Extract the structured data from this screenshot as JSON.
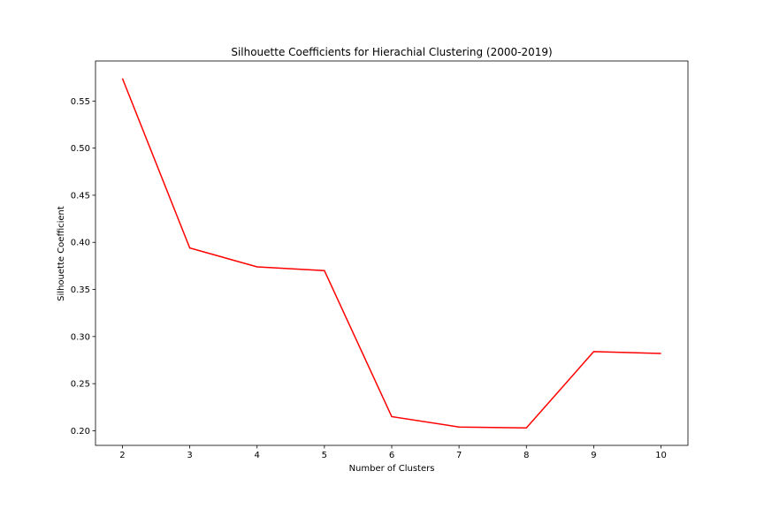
{
  "chart_data": {
    "type": "line",
    "title": "Silhouette Coefficients for Hierachial Clustering (2000-2019)",
    "xlabel": "Number of Clusters",
    "ylabel": "Silhouette Coefficient",
    "x": [
      2,
      3,
      4,
      5,
      6,
      7,
      8,
      9,
      10
    ],
    "series": [
      {
        "values": [
          0.574,
          0.394,
          0.374,
          0.37,
          0.215,
          0.204,
          0.203,
          0.284,
          0.282
        ],
        "color": "#ff0000"
      }
    ],
    "xticks": [
      2,
      3,
      4,
      5,
      6,
      7,
      8,
      9,
      10
    ],
    "xtick_labels": [
      "2",
      "3",
      "4",
      "5",
      "6",
      "7",
      "8",
      "9",
      "10"
    ],
    "yticks": [
      0.2,
      0.25,
      0.3,
      0.35,
      0.4,
      0.45,
      0.5,
      0.55
    ],
    "ytick_labels": [
      "0.20",
      "0.25",
      "0.30",
      "0.35",
      "0.40",
      "0.45",
      "0.50",
      "0.55"
    ],
    "xlim": [
      1.6,
      10.4
    ],
    "ylim": [
      0.1845,
      0.5925
    ],
    "grid": false,
    "legend": false
  }
}
